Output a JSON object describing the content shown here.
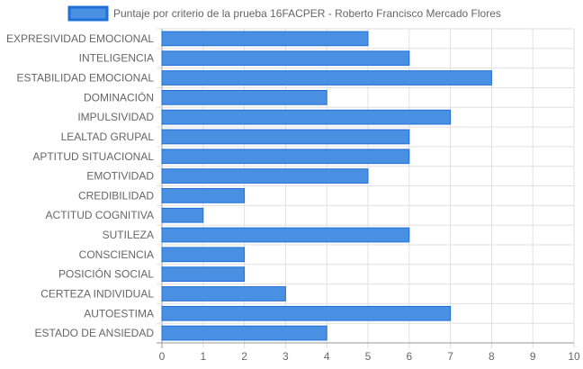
{
  "chart_data": {
    "type": "bar",
    "orientation": "horizontal",
    "legend": {
      "label": "Puntaje por criterio de la prueba 16FACPER - Roberto Francisco Mercado Flores",
      "position": "top"
    },
    "categories": [
      "EXPRESIVIDAD EMOCIONAL",
      "INTELIGENCIA",
      "ESTABILIDAD EMOCIONAL",
      "DOMINACIÓN",
      "IMPULSIVIDAD",
      "LEALTAD GRUPAL",
      "APTITUD SITUACIONAL",
      "EMOTIVIDAD",
      "CREDIBILIDAD",
      "ACTITUD COGNITIVA",
      "SUTILEZA",
      "CONSCIENCIA",
      "POSICIÓN SOCIAL",
      "CERTEZA INDIVIDUAL",
      "AUTOESTIMA",
      "ESTADO DE ANSIEDAD"
    ],
    "values": [
      5,
      6,
      8,
      4,
      7,
      6,
      6,
      5,
      2,
      1,
      6,
      2,
      2,
      3,
      7,
      4
    ],
    "xlim": [
      0,
      10
    ],
    "xticks": [
      "0",
      "1",
      "2",
      "3",
      "4",
      "5",
      "6",
      "7",
      "8",
      "9",
      "10"
    ],
    "grid": true,
    "colors": {
      "bar_fill": "#4a90e2",
      "bar_stroke": "#1e6fd9",
      "grid": "#e0e0e0",
      "axis": "#999999"
    }
  }
}
